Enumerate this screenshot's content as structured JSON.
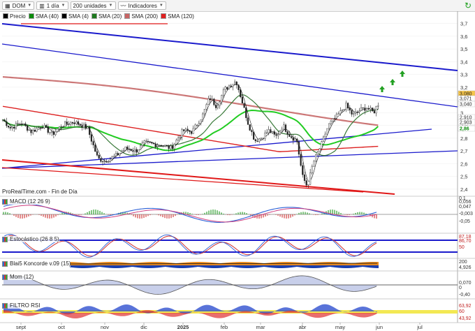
{
  "toolbar": {
    "symbol": "DOM",
    "interval": "1 día",
    "units": "200 unidades",
    "indicators": "Indicadores"
  },
  "legend": [
    {
      "label": "Precio",
      "color": "#000000"
    },
    {
      "label": "SMA (40)",
      "color": "#0a8a0a"
    },
    {
      "label": "SMA (4)",
      "color": "#000000"
    },
    {
      "label": "SMA (20)",
      "color": "#1e7a1e"
    },
    {
      "label": "SMA (200)",
      "color": "#c86464"
    },
    {
      "label": "SMA (120)",
      "color": "#e02020"
    }
  ],
  "source_label": "ProRealTime.com - Fin de Día",
  "panels": {
    "macd": "MACD (12 26 9)",
    "stoch": "Estocástico (26 8 5)",
    "blai5": "Blai5 Koncorde v.09 (15)",
    "mom": "Mom (12)",
    "rsi": "FILTRO RSI"
  },
  "colors": {
    "up": "#2a2a2a",
    "sma40": "#22cc22",
    "sma20": "#3a7a3a",
    "sma200": "#cc7777",
    "sma120": "#dd2222",
    "trend": "#1a1acc"
  },
  "chart_data": {
    "type": "candlestick",
    "x_tick_labels": [
      "sept",
      "oct",
      "nov",
      "dic",
      "2025",
      "feb",
      "mar",
      "abr",
      "may",
      "jun",
      "jul"
    ],
    "y_tick_labels": [
      "2,4",
      "2,5",
      "2,6",
      "2,7",
      "2,8",
      "2,9",
      "3",
      "3,1",
      "3,2",
      "3,3",
      "3,4",
      "3,5",
      "3,6",
      "3,7"
    ],
    "ylim": [
      2.35,
      3.72
    ],
    "last_price_labels": [
      "3,080",
      "3,071",
      "3,040",
      "3,010",
      "2,986"
    ],
    "sma_labels": [
      "2,910",
      "2,903",
      "2,86"
    ],
    "approx_close_path": [
      {
        "x": "sept",
        "y": 2.92
      },
      {
        "x": "oct",
        "y": 2.9
      },
      {
        "x": "nov",
        "y": 2.62
      },
      {
        "x": "dic",
        "y": 2.76
      },
      {
        "x": "2025",
        "y": 2.86
      },
      {
        "x": "feb",
        "y": 3.18
      },
      {
        "x": "mar",
        "y": 2.8
      },
      {
        "x": "abr",
        "y": 2.5
      },
      {
        "x": "may",
        "y": 3.0
      },
      {
        "x": "jun",
        "y": 3.08
      }
    ],
    "indicator_values": {
      "macd": [
        "0,1",
        "0,056",
        "0,047",
        "-0,003",
        "-0,05"
      ],
      "stoch": [
        "87,18",
        "86,70",
        "50"
      ],
      "koncorde": [
        "200",
        "4,926"
      ],
      "mom": [
        "0,070",
        "0",
        "-0,40"
      ],
      "rsi": [
        "63,92",
        "60",
        "43,92"
      ]
    }
  }
}
